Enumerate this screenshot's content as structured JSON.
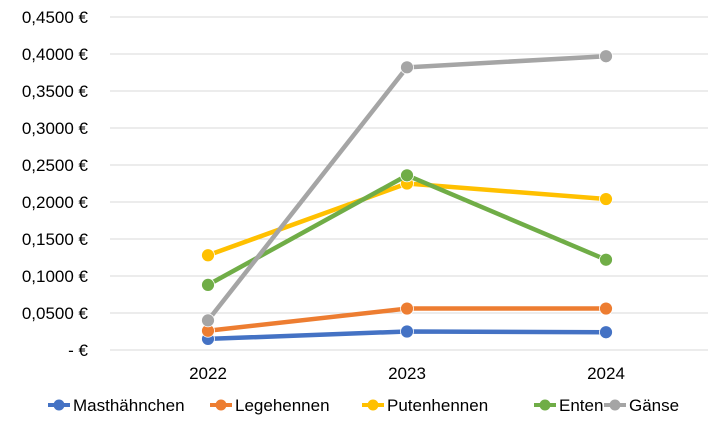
{
  "chart_data": {
    "type": "line",
    "categories": [
      "2022",
      "2023",
      "2024"
    ],
    "y_ticks": [
      "-   €",
      "0,0500 €",
      "0,1000 €",
      "0,1500 €",
      "0,2000 €",
      "0,2500 €",
      "0,3000 €",
      "0,3500 €",
      "0,4000 €",
      "0,4500 €"
    ],
    "ylim": [
      0,
      0.45
    ],
    "grid": true,
    "legend_position": "bottom",
    "series": [
      {
        "name": "Masthähnchen",
        "color": "#4472C4",
        "values": [
          0.015,
          0.025,
          0.024
        ]
      },
      {
        "name": "Legehennen",
        "color": "#ED7D31",
        "values": [
          0.026,
          0.056,
          0.056
        ]
      },
      {
        "name": "Putenhennen",
        "color": "#FFC000",
        "values": [
          0.128,
          0.225,
          0.204
        ]
      },
      {
        "name": "Enten",
        "color": "#70AD47",
        "values": [
          0.088,
          0.236,
          0.122
        ]
      },
      {
        "name": "Gänse",
        "color": "#A5A5A5",
        "values": [
          0.04,
          0.382,
          0.397
        ]
      }
    ]
  }
}
